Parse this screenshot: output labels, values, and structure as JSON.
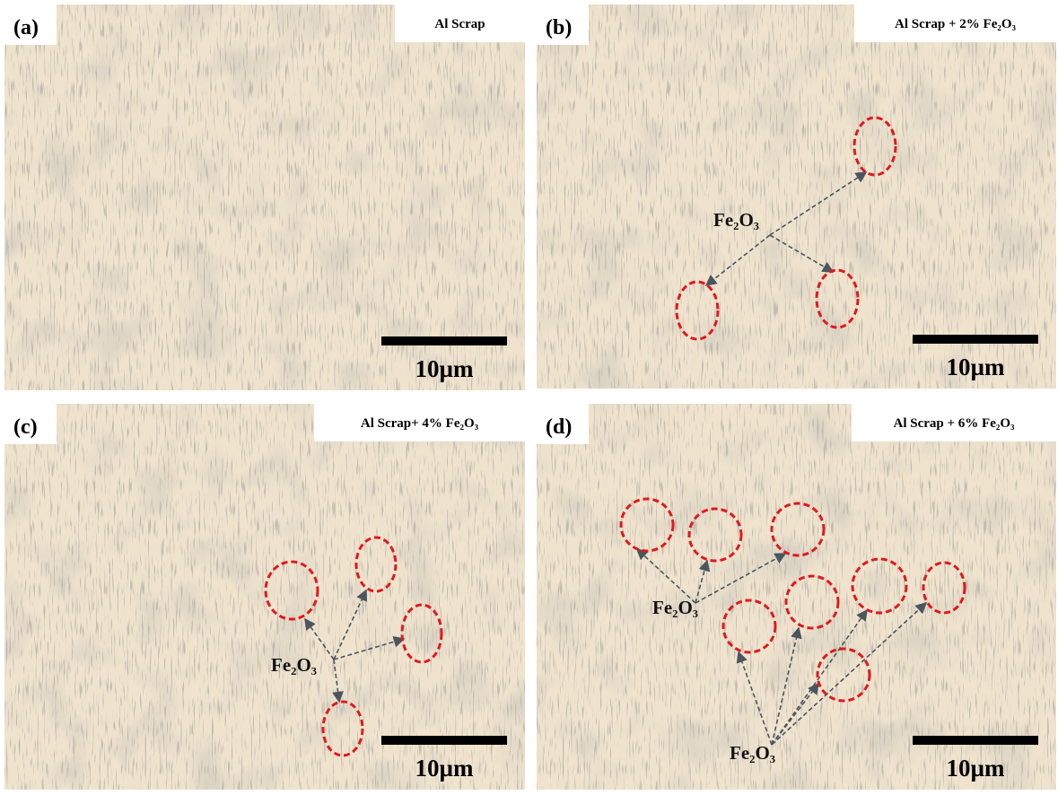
{
  "panels": [
    {
      "label": "(a)",
      "title": "Al Scrap",
      "scale_bar": "10µm",
      "annotations": []
    },
    {
      "label": "(b)",
      "title": "Al Scrap  + 2% Fe₂O₃",
      "scale_bar": "10µm",
      "annotations": [
        "Fe₂O₃"
      ]
    },
    {
      "label": "(c)",
      "title": "Al Scrap+ 4% Fe₂O₃",
      "scale_bar": "10µm",
      "annotations": [
        "Fe₂O₃"
      ]
    },
    {
      "label": "(d)",
      "title": "Al Scrap  + 6% Fe₂O₃",
      "scale_bar": "10µm",
      "annotations": [
        "Fe₂O₃",
        "Fe₂O₃"
      ]
    }
  ]
}
